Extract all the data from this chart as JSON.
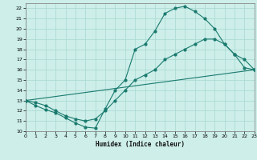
{
  "xlabel": "Humidex (Indice chaleur)",
  "xlim": [
    0,
    23
  ],
  "ylim": [
    10,
    22.5
  ],
  "yticks": [
    10,
    11,
    12,
    13,
    14,
    15,
    16,
    17,
    18,
    19,
    20,
    21,
    22
  ],
  "xticks": [
    0,
    1,
    2,
    3,
    4,
    5,
    6,
    7,
    8,
    9,
    10,
    11,
    12,
    13,
    14,
    15,
    16,
    17,
    18,
    19,
    20,
    21,
    22,
    23
  ],
  "line_color": "#1a7a6e",
  "background_color": "#cdeee9",
  "grid_color": "#a8d8d2",
  "line1_x": [
    0,
    1,
    2,
    3,
    4,
    5,
    6,
    7,
    8,
    9,
    10,
    11,
    12,
    13,
    14,
    15,
    16,
    17,
    18,
    19,
    20,
    21,
    22,
    23
  ],
  "line1_y": [
    13.0,
    12.5,
    12.1,
    11.8,
    11.3,
    10.8,
    10.4,
    10.3,
    12.2,
    14.0,
    15.0,
    18.0,
    18.5,
    19.8,
    21.5,
    22.0,
    22.2,
    21.7,
    21.0,
    20.0,
    18.5,
    17.5,
    16.2,
    16.0
  ],
  "line2_x": [
    0,
    1,
    2,
    3,
    4,
    5,
    6,
    7,
    8,
    9,
    10,
    11,
    12,
    13,
    14,
    15,
    16,
    17,
    18,
    19,
    20,
    21,
    22,
    23
  ],
  "line2_y": [
    13.0,
    12.8,
    12.5,
    12.0,
    11.5,
    11.2,
    11.0,
    11.2,
    12.0,
    13.0,
    14.0,
    15.0,
    15.5,
    16.0,
    17.0,
    17.5,
    18.0,
    18.5,
    19.0,
    19.0,
    18.5,
    17.5,
    17.0,
    16.0
  ],
  "line3_x": [
    0,
    23
  ],
  "line3_y": [
    13.0,
    16.0
  ]
}
